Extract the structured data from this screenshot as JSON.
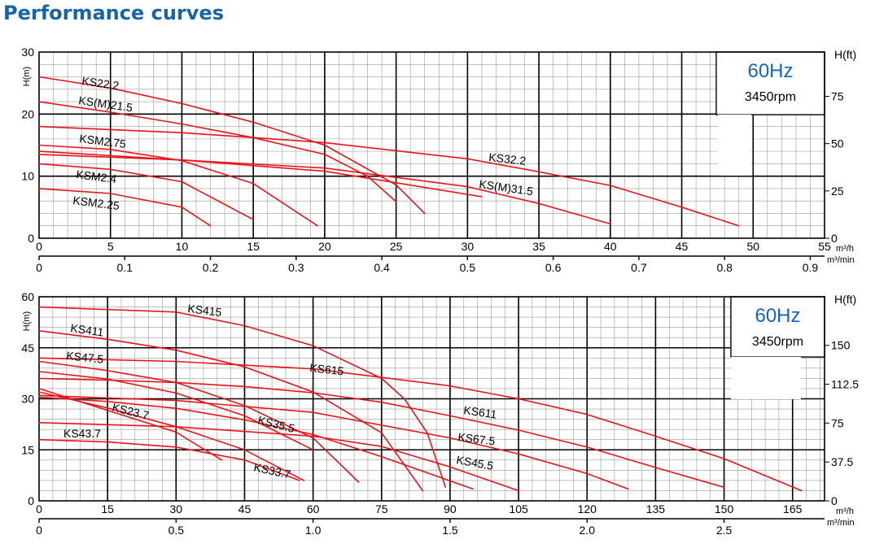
{
  "title": "Performance curves",
  "colors": {
    "title": "#1565a8",
    "curve": "#e8141b",
    "hz": "#1565c0",
    "grid_minor": "#9a9a9a",
    "grid_major": "#000000"
  },
  "chart_data": [
    {
      "type": "line",
      "freq_label": "60Hz",
      "rpm_label": "3450rpm",
      "ylabel_left": "H(m)",
      "ylabel_right": "H(ft)",
      "x_unit_top": "m³/h",
      "x_unit_bottom": "m³/min",
      "xlim": [
        0,
        55
      ],
      "ylim": [
        0,
        30
      ],
      "x_ticks": [
        "0",
        "5",
        "10",
        "15",
        "20",
        "25",
        "30",
        "35",
        "40",
        "45",
        "50",
        "55"
      ],
      "x2_ticks": [
        "0",
        "0.1",
        "0.2",
        "0.3",
        "0.4",
        "0.5",
        "0.6",
        "0.7",
        "0.8",
        "0.9"
      ],
      "y_ticks": [
        "0",
        "10",
        "20",
        "30"
      ],
      "y2_ticks": [
        "0",
        "25",
        "50",
        "75"
      ],
      "series": [
        {
          "name": "KS22.2",
          "x": [
            0,
            5,
            10,
            15,
            20,
            25,
            27
          ],
          "y": [
            26,
            24.2,
            21.7,
            18.7,
            15,
            8.6,
            4
          ]
        },
        {
          "name": "KS(M)21.5",
          "x": [
            0,
            5,
            10,
            15,
            20,
            23,
            25
          ],
          "y": [
            22,
            20.3,
            18.4,
            16.2,
            13.5,
            10,
            5.9
          ]
        },
        {
          "name": "KS32.2",
          "x": [
            0,
            10,
            20,
            30,
            35,
            40,
            45,
            49
          ],
          "y": [
            18,
            17,
            15.4,
            12.8,
            10.7,
            8.5,
            5,
            2
          ]
        },
        {
          "name": "KS(M)31.5",
          "x": [
            0,
            10,
            20,
            30,
            35,
            40
          ],
          "y": [
            14,
            12.6,
            11.3,
            8.3,
            5.6,
            2.3
          ]
        },
        {
          "name": "KSM2.75",
          "x": [
            0,
            5,
            10,
            15,
            19.5
          ],
          "y": [
            15,
            14.3,
            12.5,
            8.8,
            2
          ]
        },
        {
          "name": "KSM2.4",
          "x": [
            0,
            5,
            10,
            15
          ],
          "y": [
            12,
            11.1,
            9.1,
            3
          ]
        },
        {
          "name": "KSM2.25",
          "x": [
            0,
            5,
            10,
            12
          ],
          "y": [
            8,
            7.2,
            5,
            2
          ]
        },
        {
          "name": "",
          "x": [
            0,
            10,
            20,
            31
          ],
          "y": [
            13.5,
            12.6,
            10.8,
            6.7
          ]
        }
      ]
    },
    {
      "type": "line",
      "freq_label": "60Hz",
      "rpm_label": "3450rpm",
      "ylabel_left": "H(m)",
      "ylabel_right": "H(ft)",
      "x_unit_top": "m³/h",
      "x_unit_bottom": "m³/min",
      "xlim": [
        0,
        172
      ],
      "ylim": [
        0,
        60
      ],
      "x_ticks": [
        "0",
        "15",
        "30",
        "45",
        "60",
        "75",
        "90",
        "105",
        "120",
        "135",
        "150",
        "165"
      ],
      "x2_ticks": [
        "0",
        "0.5",
        "1.0",
        "1.5",
        "2.0",
        "2.5"
      ],
      "y_ticks": [
        "0",
        "15",
        "30",
        "45",
        "60"
      ],
      "y2_ticks": [
        "0",
        "37.5",
        "75",
        "112.5",
        "150"
      ],
      "series": [
        {
          "name": "KS415",
          "x": [
            0,
            30,
            45,
            60,
            75,
            80,
            85,
            89
          ],
          "y": [
            57,
            55.5,
            51.5,
            45.6,
            36,
            30,
            20,
            4
          ]
        },
        {
          "name": "KS411",
          "x": [
            0,
            15,
            30,
            45,
            60,
            75,
            84
          ],
          "y": [
            50,
            47.5,
            44.3,
            39.4,
            32,
            20,
            3
          ]
        },
        {
          "name": "KS615",
          "x": [
            0,
            30,
            60,
            90,
            105,
            120,
            135,
            150,
            167
          ],
          "y": [
            42,
            41,
            38.8,
            33.8,
            30,
            25.4,
            19,
            12.4,
            3
          ]
        },
        {
          "name": "KS47.5",
          "x": [
            0,
            15,
            30,
            45,
            60,
            70
          ],
          "y": [
            41,
            38.3,
            34.8,
            28,
            18.5,
            5.5
          ]
        },
        {
          "name": "KS611",
          "x": [
            0,
            15,
            30,
            45,
            60,
            75,
            90,
            105,
            120,
            135,
            150
          ],
          "y": [
            36,
            35.5,
            34.8,
            33.6,
            31.8,
            29,
            25,
            20.8,
            15.8,
            9.8,
            4
          ]
        },
        {
          "name": "KS67.5",
          "x": [
            0,
            30,
            60,
            90,
            105,
            120,
            129
          ],
          "y": [
            31,
            29.5,
            26,
            18.5,
            13.8,
            8,
            3.5
          ]
        },
        {
          "name": "KS45.5",
          "x": [
            0,
            30,
            60,
            75,
            90,
            105
          ],
          "y": [
            23,
            21.8,
            19,
            16,
            10,
            3
          ]
        },
        {
          "name": "KS35.5",
          "x": [
            0,
            15,
            30,
            45,
            60,
            75,
            95
          ],
          "y": [
            30.5,
            29.2,
            27.2,
            23.8,
            19.5,
            13,
            3.5
          ]
        },
        {
          "name": "KS23.7",
          "x": [
            0,
            15,
            30,
            40
          ],
          "y": [
            33,
            26.6,
            20.2,
            12
          ]
        },
        {
          "name": "KS43.7",
          "x": [
            0,
            15,
            30,
            45,
            57
          ],
          "y": [
            18,
            17.3,
            15.8,
            12,
            6
          ]
        },
        {
          "name": "KS33.7",
          "x": [
            0,
            15,
            30,
            45,
            58
          ],
          "y": [
            32,
            27.3,
            21.8,
            15,
            6
          ]
        },
        {
          "name": "",
          "x": [
            0,
            15,
            30,
            45,
            60
          ],
          "y": [
            38,
            35.8,
            31.7,
            25,
            15
          ]
        }
      ]
    }
  ]
}
